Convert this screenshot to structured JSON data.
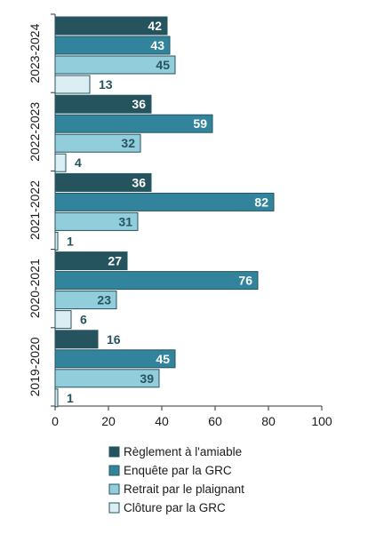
{
  "chart_data": {
    "type": "bar",
    "orientation": "horizontal",
    "categories": [
      "2023-2024",
      "2022-2023",
      "2021-2022",
      "2020-2021",
      "2019-2020"
    ],
    "series": [
      {
        "name": "Règlement à l'amiable",
        "color": "#25545F",
        "values": [
          42,
          36,
          36,
          27,
          16
        ]
      },
      {
        "name": "Enquête par la GRC",
        "color": "#31849B",
        "values": [
          43,
          59,
          82,
          76,
          45
        ]
      },
      {
        "name": "Retrait par le plaignant",
        "color": "#92CDDC",
        "values": [
          45,
          32,
          31,
          23,
          39
        ]
      },
      {
        "name": "Clôture par la GRC",
        "color": "#DAEEF3",
        "values": [
          13,
          4,
          1,
          6,
          1
        ]
      }
    ],
    "xlim": [
      0,
      100
    ],
    "xticks": [
      0,
      20,
      40,
      60,
      80,
      100
    ],
    "legend_position": "bottom",
    "grid": false
  }
}
